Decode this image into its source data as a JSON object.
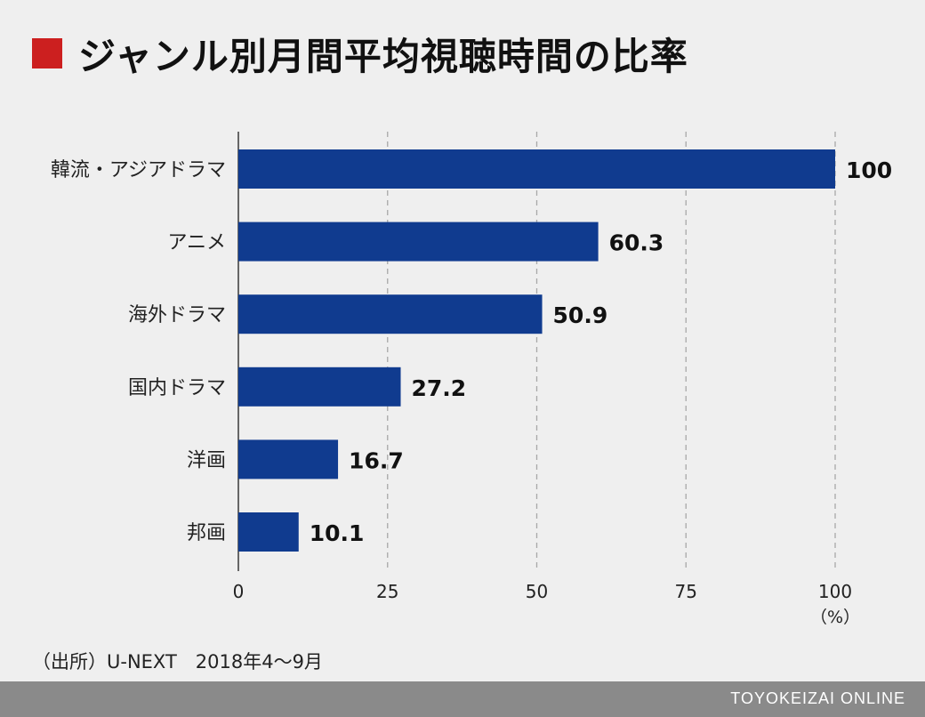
{
  "title": "ジャンル別月間平均視聴時間の比率",
  "chart_data": {
    "type": "bar",
    "orientation": "horizontal",
    "categories": [
      "韓流・アジアドラマ",
      "アニメ",
      "海外ドラマ",
      "国内ドラマ",
      "洋画",
      "邦画"
    ],
    "values": [
      100,
      60.3,
      50.9,
      27.2,
      16.7,
      10.1
    ],
    "value_labels": [
      "100",
      "60.3",
      "50.9",
      "27.2",
      "16.7",
      "10.1"
    ],
    "xlim": [
      0,
      100
    ],
    "xticks": [
      0,
      25,
      50,
      75,
      100
    ],
    "xtick_labels": [
      "0",
      "25",
      "50",
      "75",
      "100"
    ],
    "unit_label": "（%）",
    "grid": "vertical-dashed",
    "bar_color": "#103b8f"
  },
  "source": "（出所）U-NEXT　2018年4〜9月",
  "footer": "TOYOKEIZAI ONLINE",
  "colors": {
    "accent": "#cc1f1f",
    "background": "#efefef",
    "footer_bg": "#8a8a8a"
  }
}
